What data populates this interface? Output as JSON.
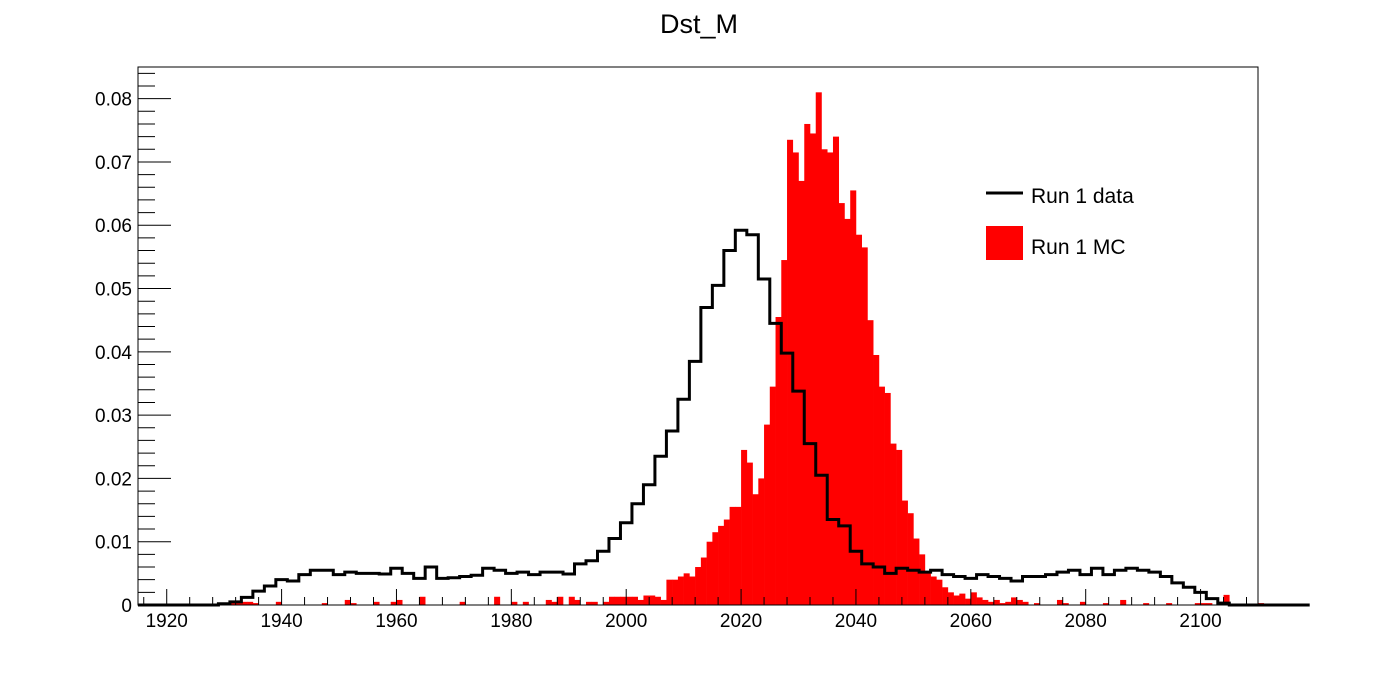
{
  "chart_data": {
    "type": "histogram",
    "title": "Dst_M",
    "xlabel": "",
    "ylabel": "",
    "xlim": [
      1915,
      2110
    ],
    "ylim": [
      0,
      0.085
    ],
    "bin_width": 2,
    "x_ticks": [
      "1920",
      "1940",
      "1960",
      "1980",
      "2000",
      "2020",
      "2040",
      "2060",
      "2080",
      "2100"
    ],
    "x_tick_values": [
      1920,
      1940,
      1960,
      1980,
      2000,
      2020,
      2040,
      2060,
      2080,
      2100
    ],
    "y_ticks": [
      "0",
      "0.01",
      "0.02",
      "0.03",
      "0.04",
      "0.05",
      "0.06",
      "0.07",
      "0.08"
    ],
    "y_tick_values": [
      0,
      0.01,
      0.02,
      0.03,
      0.04,
      0.05,
      0.06,
      0.07,
      0.08
    ],
    "legend_position": "top-right",
    "series": [
      {
        "name": "Run 1 data",
        "style": "step-line",
        "color": "#000000",
        "bin_edges_start": 1915,
        "bin_width": 2,
        "values": [
          0,
          0,
          0,
          0,
          0,
          0,
          0,
          0.0002,
          0.0005,
          0.0012,
          0.0022,
          0.003,
          0.004,
          0.0038,
          0.0048,
          0.0055,
          0.0055,
          0.0048,
          0.0052,
          0.005,
          0.005,
          0.0049,
          0.0058,
          0.005,
          0.0042,
          0.006,
          0.0042,
          0.0043,
          0.0045,
          0.0047,
          0.0058,
          0.0055,
          0.005,
          0.0052,
          0.0048,
          0.0052,
          0.0052,
          0.0049,
          0.0065,
          0.007,
          0.0085,
          0.0105,
          0.013,
          0.016,
          0.019,
          0.0235,
          0.0275,
          0.0325,
          0.0385,
          0.047,
          0.0505,
          0.056,
          0.0592,
          0.0585,
          0.0515,
          0.0445,
          0.0398,
          0.0338,
          0.0255,
          0.0205,
          0.0135,
          0.0125,
          0.0085,
          0.0065,
          0.006,
          0.005,
          0.0058,
          0.0055,
          0.0052,
          0.0055,
          0.0048,
          0.0045,
          0.0042,
          0.0048,
          0.0045,
          0.0042,
          0.0038,
          0.0045,
          0.0045,
          0.0048,
          0.0052,
          0.0055,
          0.0048,
          0.0058,
          0.0048,
          0.0055,
          0.0058,
          0.0055,
          0.0052,
          0.0045,
          0.0035,
          0.0028,
          0.002,
          0.001,
          0.0003,
          0,
          0,
          0,
          0,
          0,
          0,
          0
        ]
      },
      {
        "name": "Run 1 MC",
        "style": "filled-bars",
        "color": "#ff0000",
        "bin_edges_start": 1915,
        "bin_width": 1,
        "values": [
          0,
          0,
          0,
          0,
          0,
          0,
          0,
          0,
          0,
          0,
          0,
          0,
          0,
          0,
          0,
          0,
          0.0003,
          0.0005,
          0.0005,
          0.0005,
          0.0003,
          0,
          0,
          0,
          0.0005,
          0,
          0,
          0,
          0,
          0,
          0,
          0,
          0.0003,
          0,
          0,
          0,
          0.0008,
          0.0003,
          0,
          0,
          0,
          0.0005,
          0,
          0,
          0.0005,
          0.0008,
          0,
          0,
          0,
          0.0013,
          0,
          0,
          0,
          0,
          0,
          0,
          0.0005,
          0,
          0,
          0,
          0,
          0,
          0.0013,
          0,
          0,
          0.0005,
          0,
          0.0005,
          0,
          0,
          0,
          0.0008,
          0.0005,
          0.0013,
          0,
          0.0013,
          0.0008,
          0,
          0.0005,
          0.0005,
          0,
          0.0005,
          0.0013,
          0.0013,
          0.0013,
          0.0013,
          0.0013,
          0.0008,
          0.0015,
          0.0015,
          0.0013,
          0.0008,
          0.004,
          0.004,
          0.0045,
          0.005,
          0.0045,
          0.006,
          0.0075,
          0.01,
          0.0115,
          0.0125,
          0.0135,
          0.0155,
          0.0155,
          0.0245,
          0.0225,
          0.0175,
          0.02,
          0.0285,
          0.0345,
          0.0455,
          0.0545,
          0.0735,
          0.0715,
          0.067,
          0.076,
          0.0745,
          0.081,
          0.072,
          0.0715,
          0.074,
          0.0635,
          0.061,
          0.0655,
          0.0585,
          0.0565,
          0.045,
          0.0395,
          0.0345,
          0.0335,
          0.0255,
          0.0245,
          0.0165,
          0.0145,
          0.0105,
          0.008,
          0.005,
          0.0045,
          0.004,
          0.0028,
          0.002,
          0.0015,
          0.0018,
          0.001,
          0.002,
          0.0012,
          0.0008,
          0.0005,
          0.0008,
          0.0003,
          0.0005,
          0.0012,
          0.0008,
          0.0005,
          0,
          0.0003,
          0,
          0,
          0,
          0.0008,
          0.0003,
          0,
          0,
          0.0005,
          0,
          0,
          0,
          0.0003,
          0,
          0,
          0.0008,
          0,
          0,
          0,
          0.0003,
          0,
          0,
          0,
          0.0003,
          0,
          0,
          0,
          0,
          0.0003,
          0.0003,
          0.0003,
          0,
          0.0005,
          0.0016,
          0,
          0,
          0,
          0,
          0,
          0.0003,
          0,
          0,
          0,
          0,
          0,
          0,
          0,
          0,
          0,
          0,
          0,
          0,
          0,
          0
        ]
      }
    ]
  }
}
